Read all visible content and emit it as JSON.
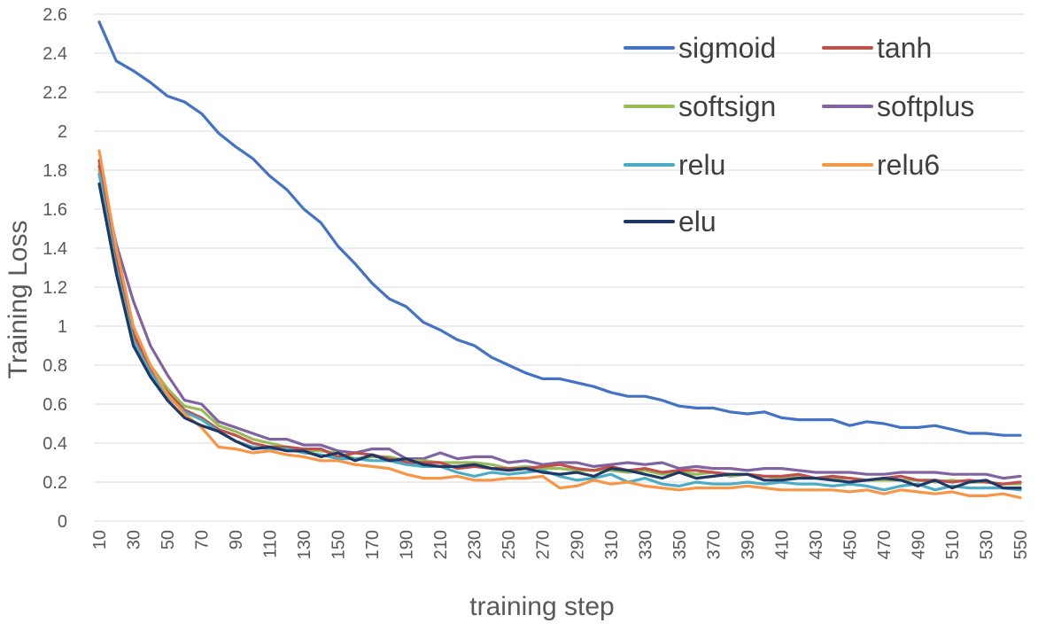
{
  "chart_data": {
    "type": "line",
    "title": "",
    "xlabel": "training step",
    "ylabel": "Training Loss",
    "ylim": [
      0,
      2.6
    ],
    "yticks": [
      "0",
      "0.2",
      "0.4",
      "0.6",
      "0.8",
      "1",
      "1.2",
      "1.4",
      "1.6",
      "1.8",
      "2",
      "2.2",
      "2.4",
      "2.6"
    ],
    "xticks": [
      "10",
      "30",
      "50",
      "70",
      "90",
      "110",
      "130",
      "150",
      "170",
      "190",
      "210",
      "230",
      "250",
      "270",
      "290",
      "310",
      "330",
      "350",
      "370",
      "390",
      "410",
      "430",
      "450",
      "470",
      "490",
      "510",
      "530",
      "550"
    ],
    "grid": true,
    "legend_position": "top-right",
    "x": [
      10,
      20,
      30,
      40,
      50,
      60,
      70,
      80,
      90,
      100,
      110,
      120,
      130,
      140,
      150,
      160,
      170,
      180,
      190,
      200,
      210,
      220,
      230,
      240,
      250,
      260,
      270,
      280,
      290,
      300,
      310,
      320,
      330,
      340,
      350,
      360,
      370,
      380,
      390,
      400,
      410,
      420,
      430,
      440,
      450,
      460,
      470,
      480,
      490,
      500,
      510,
      520,
      530,
      540,
      550
    ],
    "series": [
      {
        "name": "sigmoid",
        "color": "#4472c4",
        "values": [
          2.56,
          2.36,
          2.31,
          2.25,
          2.18,
          2.15,
          2.09,
          1.99,
          1.92,
          1.86,
          1.77,
          1.7,
          1.6,
          1.53,
          1.41,
          1.32,
          1.22,
          1.14,
          1.1,
          1.02,
          0.98,
          0.93,
          0.9,
          0.84,
          0.8,
          0.76,
          0.73,
          0.73,
          0.71,
          0.69,
          0.66,
          0.64,
          0.64,
          0.62,
          0.59,
          0.58,
          0.58,
          0.56,
          0.55,
          0.56,
          0.53,
          0.52,
          0.52,
          0.52,
          0.49,
          0.51,
          0.5,
          0.48,
          0.48,
          0.49,
          0.47,
          0.45,
          0.45,
          0.44,
          0.44
        ]
      },
      {
        "name": "tanh",
        "color": "#c0504d",
        "values": [
          1.85,
          1.36,
          0.96,
          0.78,
          0.66,
          0.57,
          0.53,
          0.47,
          0.44,
          0.4,
          0.38,
          0.38,
          0.37,
          0.37,
          0.33,
          0.35,
          0.34,
          0.32,
          0.3,
          0.3,
          0.3,
          0.27,
          0.28,
          0.27,
          0.27,
          0.27,
          0.28,
          0.29,
          0.27,
          0.26,
          0.28,
          0.26,
          0.27,
          0.25,
          0.26,
          0.26,
          0.25,
          0.24,
          0.24,
          0.23,
          0.23,
          0.24,
          0.22,
          0.23,
          0.22,
          0.21,
          0.22,
          0.23,
          0.21,
          0.21,
          0.2,
          0.21,
          0.2,
          0.19,
          0.2
        ]
      },
      {
        "name": "softsign",
        "color": "#9bbb59",
        "values": [
          1.8,
          1.33,
          0.98,
          0.8,
          0.68,
          0.59,
          0.57,
          0.49,
          0.46,
          0.42,
          0.4,
          0.38,
          0.36,
          0.36,
          0.35,
          0.32,
          0.33,
          0.33,
          0.31,
          0.31,
          0.3,
          0.3,
          0.3,
          0.29,
          0.27,
          0.28,
          0.27,
          0.27,
          0.26,
          0.26,
          0.26,
          0.25,
          0.26,
          0.24,
          0.25,
          0.24,
          0.25,
          0.23,
          0.24,
          0.23,
          0.22,
          0.23,
          0.22,
          0.22,
          0.22,
          0.21,
          0.21,
          0.21,
          0.21,
          0.2,
          0.21,
          0.2,
          0.2,
          0.19,
          0.19
        ]
      },
      {
        "name": "softplus",
        "color": "#8064a2",
        "values": [
          1.82,
          1.42,
          1.13,
          0.9,
          0.75,
          0.62,
          0.6,
          0.51,
          0.48,
          0.45,
          0.42,
          0.42,
          0.39,
          0.39,
          0.36,
          0.35,
          0.37,
          0.37,
          0.32,
          0.32,
          0.35,
          0.32,
          0.33,
          0.33,
          0.3,
          0.31,
          0.29,
          0.3,
          0.3,
          0.28,
          0.29,
          0.3,
          0.29,
          0.3,
          0.27,
          0.28,
          0.27,
          0.27,
          0.26,
          0.27,
          0.27,
          0.26,
          0.25,
          0.25,
          0.25,
          0.24,
          0.24,
          0.25,
          0.25,
          0.25,
          0.24,
          0.24,
          0.24,
          0.22,
          0.23
        ]
      },
      {
        "name": "relu",
        "color": "#4bacc6",
        "values": [
          1.78,
          1.3,
          0.93,
          0.76,
          0.64,
          0.56,
          0.52,
          0.46,
          0.41,
          0.38,
          0.37,
          0.37,
          0.35,
          0.34,
          0.32,
          0.32,
          0.31,
          0.31,
          0.29,
          0.28,
          0.28,
          0.25,
          0.23,
          0.25,
          0.24,
          0.25,
          0.26,
          0.23,
          0.21,
          0.22,
          0.24,
          0.2,
          0.22,
          0.19,
          0.18,
          0.2,
          0.19,
          0.19,
          0.2,
          0.19,
          0.2,
          0.19,
          0.19,
          0.18,
          0.19,
          0.18,
          0.16,
          0.18,
          0.19,
          0.16,
          0.18,
          0.17,
          0.17,
          0.17,
          0.16
        ]
      },
      {
        "name": "relu6",
        "color": "#f79646",
        "values": [
          1.9,
          1.4,
          1.0,
          0.8,
          0.65,
          0.55,
          0.48,
          0.38,
          0.37,
          0.35,
          0.36,
          0.34,
          0.33,
          0.31,
          0.31,
          0.29,
          0.28,
          0.27,
          0.24,
          0.22,
          0.22,
          0.23,
          0.21,
          0.21,
          0.22,
          0.22,
          0.23,
          0.17,
          0.18,
          0.21,
          0.19,
          0.2,
          0.18,
          0.17,
          0.16,
          0.17,
          0.17,
          0.17,
          0.18,
          0.17,
          0.16,
          0.16,
          0.16,
          0.16,
          0.15,
          0.16,
          0.14,
          0.16,
          0.15,
          0.14,
          0.15,
          0.13,
          0.13,
          0.14,
          0.12
        ]
      },
      {
        "name": "elu",
        "color": "#1f3864",
        "values": [
          1.73,
          1.27,
          0.9,
          0.74,
          0.62,
          0.53,
          0.49,
          0.46,
          0.41,
          0.37,
          0.38,
          0.36,
          0.36,
          0.33,
          0.35,
          0.31,
          0.34,
          0.31,
          0.32,
          0.29,
          0.28,
          0.28,
          0.29,
          0.27,
          0.26,
          0.27,
          0.25,
          0.24,
          0.25,
          0.23,
          0.27,
          0.26,
          0.24,
          0.22,
          0.25,
          0.22,
          0.23,
          0.24,
          0.24,
          0.21,
          0.21,
          0.22,
          0.22,
          0.21,
          0.2,
          0.21,
          0.22,
          0.21,
          0.18,
          0.21,
          0.17,
          0.2,
          0.21,
          0.17,
          0.17
        ]
      }
    ]
  }
}
